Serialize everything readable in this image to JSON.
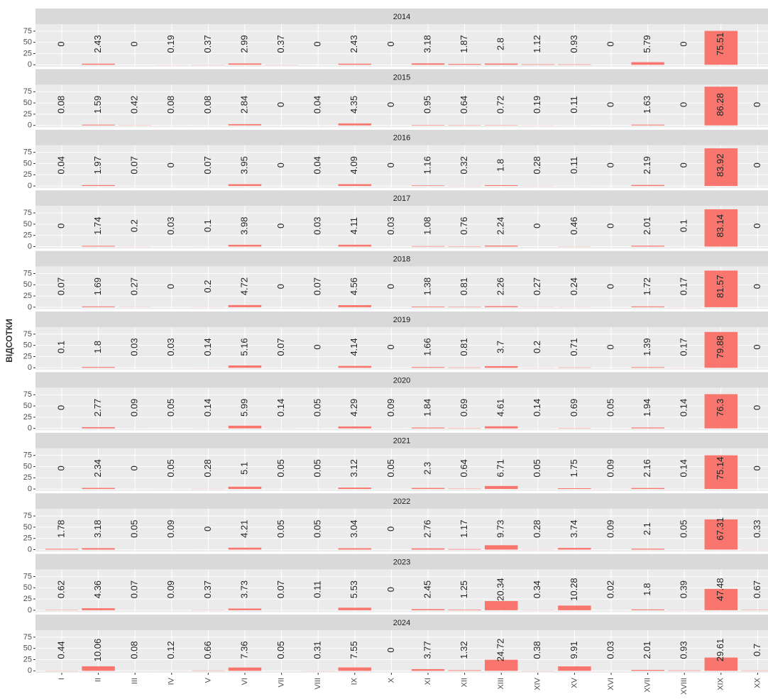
{
  "chart_data": {
    "type": "bar",
    "y_label": "ВІДСОТКИ",
    "color": "#f8766d",
    "grid": true,
    "categories": [
      "I",
      "II",
      "III",
      "IV",
      "V",
      "VI",
      "VII",
      "VIII",
      "IX",
      "X",
      "XI",
      "XII",
      "XIII",
      "XIV",
      "XV",
      "XVI",
      "XVII",
      "XVIII",
      "XIX",
      "XX"
    ],
    "ylim": [
      -4.3,
      90.6
    ],
    "yticks": [
      0,
      25,
      50,
      75
    ],
    "series": [
      {
        "name": "2014",
        "values": [
          0,
          2.43,
          0,
          0.19,
          0.37,
          2.99,
          0.37,
          0,
          2.43,
          0,
          3.18,
          1.87,
          2.8,
          1.12,
          0.93,
          0,
          5.79,
          0,
          75.51,
          null
        ]
      },
      {
        "name": "2015",
        "values": [
          0.08,
          1.59,
          0.42,
          0.08,
          0.08,
          2.84,
          0,
          0.04,
          4.35,
          0,
          0.95,
          0.64,
          0.72,
          0.19,
          0.11,
          0,
          1.63,
          0,
          86.28,
          0
        ]
      },
      {
        "name": "2016",
        "values": [
          0.04,
          1.97,
          0.07,
          0,
          0.07,
          3.95,
          0,
          0.04,
          4.09,
          0,
          1.16,
          0.32,
          1.8,
          0.28,
          0.11,
          0,
          2.19,
          0,
          83.92,
          0
        ]
      },
      {
        "name": "2017",
        "values": [
          0,
          1.74,
          0.2,
          0.03,
          0.1,
          3.98,
          0,
          0.03,
          4.11,
          0.03,
          1.08,
          0.76,
          2.24,
          0,
          0.46,
          0,
          2.01,
          0.1,
          83.14,
          0
        ]
      },
      {
        "name": "2018",
        "values": [
          0.07,
          1.69,
          0.27,
          0,
          0.2,
          4.72,
          0,
          0.07,
          4.56,
          0,
          1.38,
          0.81,
          2.26,
          0.27,
          0.24,
          0,
          1.72,
          0.17,
          81.57,
          0
        ]
      },
      {
        "name": "2019",
        "values": [
          0.1,
          1.8,
          0.03,
          0.03,
          0.14,
          5.16,
          0.07,
          0,
          4.14,
          0,
          1.66,
          0.81,
          3.7,
          0.2,
          0.71,
          0,
          1.39,
          0.17,
          79.88,
          0
        ]
      },
      {
        "name": "2020",
        "values": [
          0,
          2.77,
          0.09,
          0.05,
          0.14,
          5.99,
          0.14,
          0.05,
          4.29,
          0.09,
          1.84,
          0.69,
          4.61,
          0.14,
          0.69,
          0.05,
          1.94,
          0.14,
          76.3,
          0
        ]
      },
      {
        "name": "2021",
        "values": [
          0,
          2.34,
          0,
          0.05,
          0.28,
          5.1,
          0.05,
          0.05,
          3.12,
          0.05,
          2.3,
          0.64,
          6.71,
          0.05,
          1.75,
          0.09,
          2.16,
          0.14,
          75.14,
          0
        ]
      },
      {
        "name": "2022",
        "values": [
          1.78,
          3.18,
          0.05,
          0.09,
          0,
          4.21,
          0.05,
          0.05,
          3.04,
          0,
          2.76,
          1.17,
          9.73,
          0.28,
          3.74,
          0.09,
          2.1,
          0.05,
          67.31,
          0.33
        ]
      },
      {
        "name": "2023",
        "values": [
          0.62,
          4.36,
          0.07,
          0.09,
          0.37,
          3.73,
          0.07,
          0.11,
          5.53,
          0,
          2.45,
          1.25,
          20.34,
          0.34,
          10.28,
          0.02,
          1.8,
          0.39,
          47.48,
          0.67
        ]
      },
      {
        "name": "2024",
        "values": [
          0.44,
          10.06,
          0.08,
          0.12,
          0.66,
          7.36,
          0.05,
          0.31,
          7.55,
          0,
          3.77,
          1.32,
          24.72,
          0.38,
          9.91,
          0.03,
          2.01,
          0.93,
          29.61,
          0.7
        ]
      }
    ]
  }
}
